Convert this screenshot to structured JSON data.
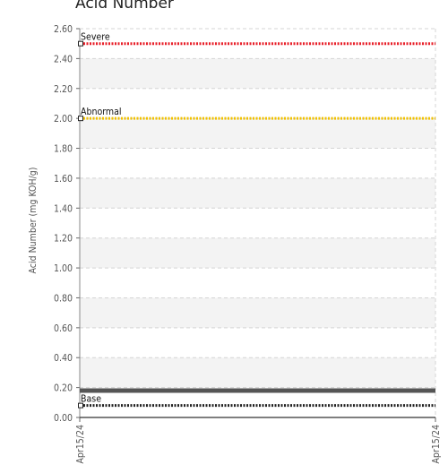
{
  "chart_data": {
    "type": "line",
    "title": "Acid Number",
    "ylabel": "Acid Number (mg KOH/g)",
    "xlabel": "",
    "ylim": [
      0,
      2.6
    ],
    "yticks": [
      "0.00",
      "0.20",
      "0.40",
      "0.60",
      "0.80",
      "1.00",
      "1.20",
      "1.40",
      "1.60",
      "1.80",
      "2.00",
      "2.20",
      "2.40",
      "2.60"
    ],
    "xticks": [
      "Apr15/24",
      "Apr15/24"
    ],
    "grid": true,
    "reference_lines": [
      {
        "label": "Severe",
        "value": 2.5,
        "color": "#e8202a",
        "style": "dotted"
      },
      {
        "label": "Abnormal",
        "value": 2.0,
        "color": "#f2c200",
        "style": "dotted"
      },
      {
        "label": "Base",
        "value": 0.08,
        "color": "#222222",
        "style": "dotted"
      }
    ],
    "series": [
      {
        "values": [
          0.18,
          0.18
        ],
        "color": "#555555"
      }
    ]
  }
}
